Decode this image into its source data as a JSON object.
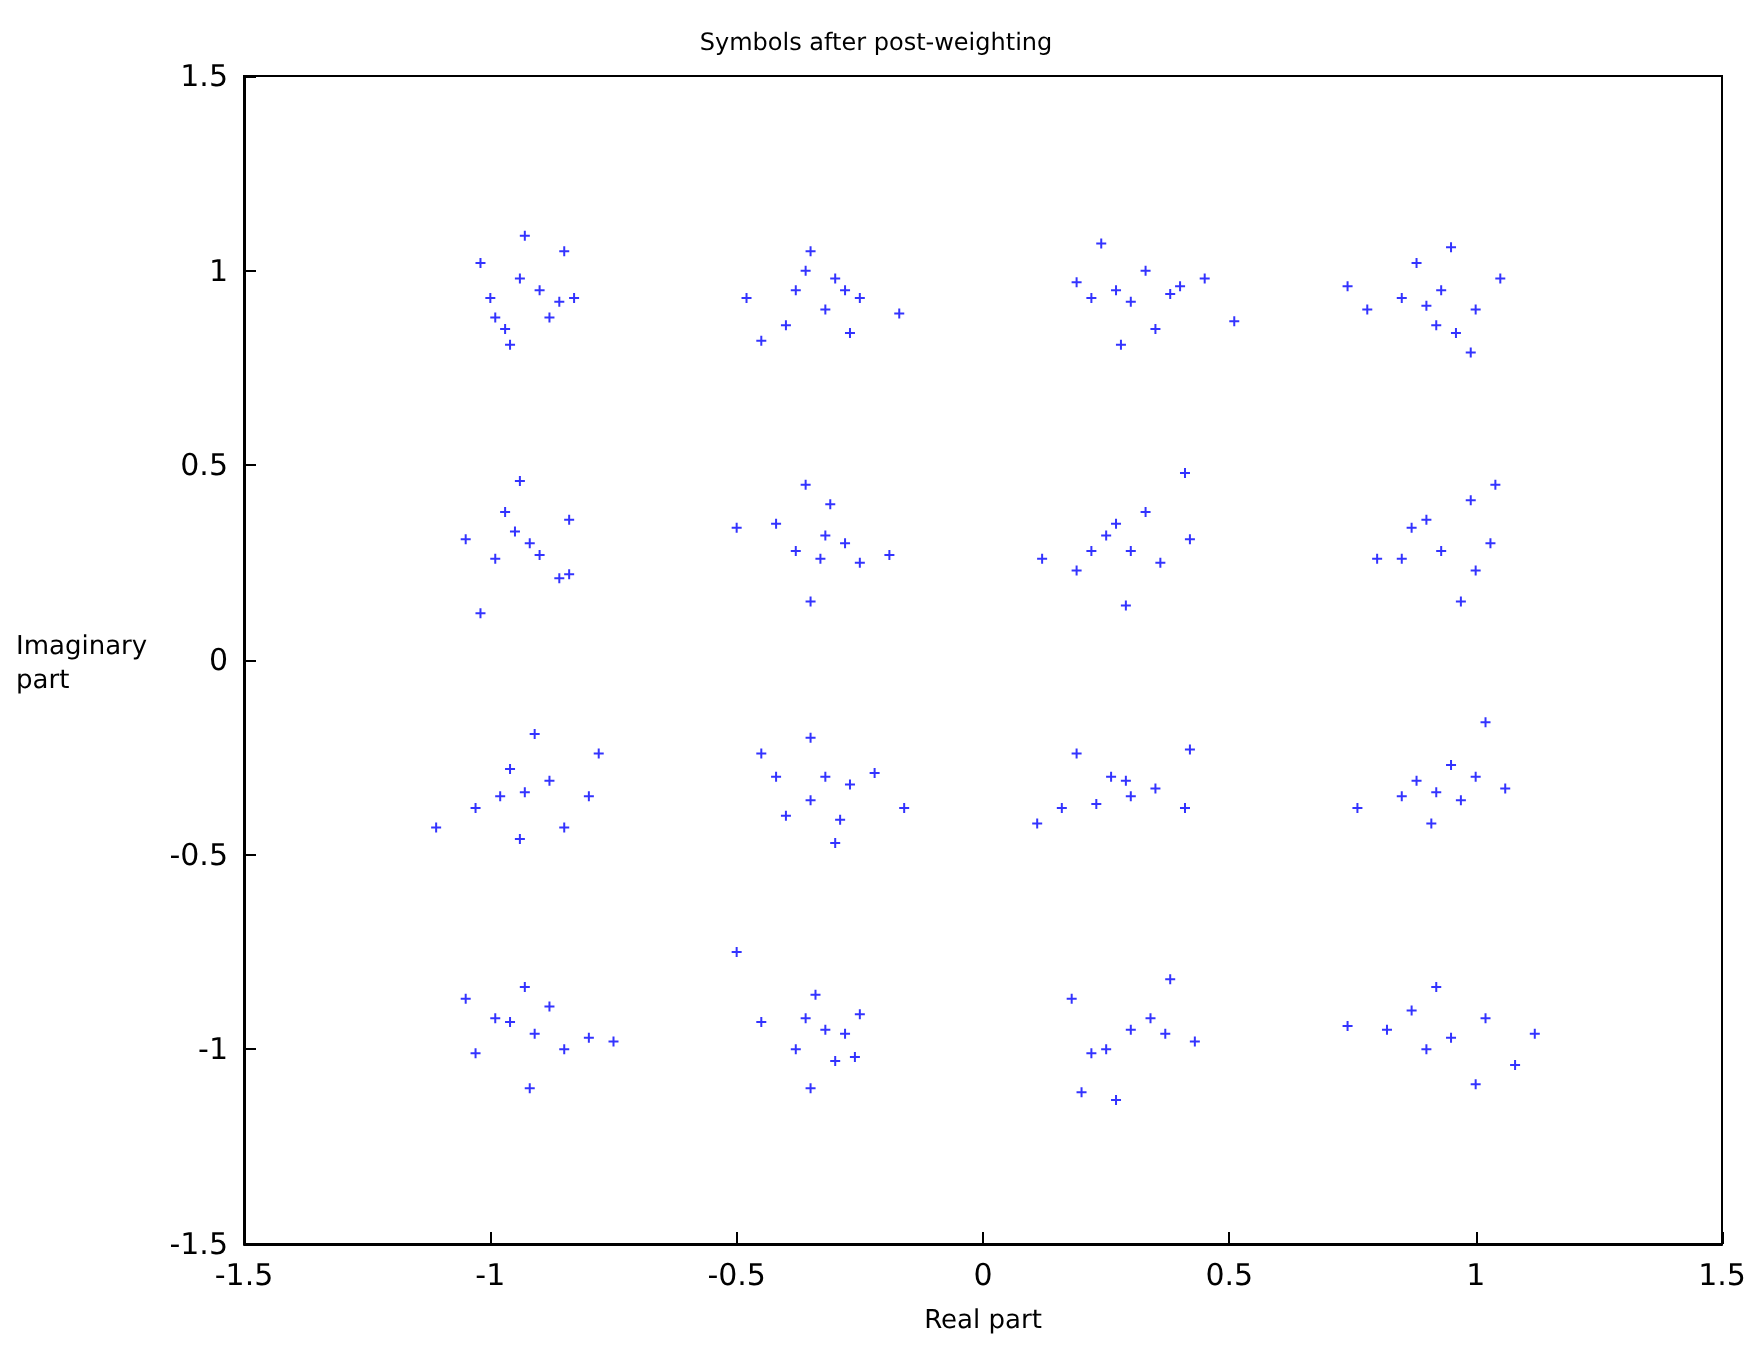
{
  "chart_data": {
    "type": "scatter",
    "title": "Symbols after post-weighting",
    "xlabel": "Real part",
    "ylabel": "Imaginary part",
    "marker": "cross",
    "grid": false,
    "xlim": [
      -1.5,
      1.5
    ],
    "xticks": [
      -1.5,
      -1,
      -0.5,
      0,
      0.5,
      1,
      1.5
    ],
    "ylim": [
      -1.5,
      1.5
    ],
    "yticks": [
      -1.5,
      -1,
      -0.5,
      0,
      0.5,
      1,
      1.5
    ],
    "series": [
      {
        "color": "#0000ff",
        "x": [
          -0.93,
          -1.02,
          -0.85,
          -0.83,
          -0.96,
          -0.99,
          -0.9,
          -0.94,
          -0.88,
          -1.0,
          -0.86,
          -0.97,
          -0.35,
          -0.48,
          -0.45,
          -0.17,
          -0.27,
          -0.3,
          -0.38,
          -0.32,
          -0.4,
          -0.25,
          -0.36,
          -0.28,
          0.24,
          0.19,
          0.51,
          0.45,
          0.28,
          0.35,
          0.3,
          0.27,
          0.38,
          0.33,
          0.22,
          0.4,
          0.95,
          0.74,
          0.88,
          1.05,
          0.99,
          0.96,
          0.9,
          0.85,
          0.93,
          1.0,
          0.78,
          0.92,
          -0.94,
          -1.02,
          -1.05,
          -0.84,
          -0.84,
          -0.97,
          -0.92,
          -0.99,
          -0.9,
          -0.95,
          -0.86,
          -0.36,
          -0.5,
          -0.35,
          -0.19,
          -0.31,
          -0.42,
          -0.28,
          -0.33,
          -0.38,
          -0.25,
          -0.32,
          0.41,
          0.12,
          0.19,
          0.42,
          0.29,
          0.33,
          0.25,
          0.3,
          0.36,
          0.22,
          0.27,
          1.04,
          0.8,
          0.99,
          0.97,
          0.87,
          0.93,
          1.0,
          0.85,
          1.03,
          0.9,
          -1.11,
          -0.91,
          -0.78,
          -0.94,
          -0.85,
          -0.96,
          -1.03,
          -0.88,
          -0.93,
          -0.8,
          -0.98,
          -0.35,
          -0.45,
          -0.16,
          -0.3,
          -0.4,
          -0.32,
          -0.27,
          -0.35,
          -0.22,
          -0.42,
          -0.29,
          0.11,
          0.19,
          0.42,
          0.29,
          0.23,
          0.35,
          0.41,
          0.3,
          0.16,
          0.26,
          1.02,
          0.76,
          1.06,
          0.91,
          0.88,
          0.95,
          0.97,
          0.85,
          0.92,
          1.0,
          -0.92,
          -1.05,
          -0.75,
          -0.93,
          -0.8,
          -1.03,
          -0.96,
          -0.88,
          -0.91,
          -0.85,
          -0.99,
          -0.5,
          -0.35,
          -0.45,
          -0.34,
          -0.25,
          -0.3,
          -0.38,
          -0.32,
          -0.28,
          -0.36,
          -0.26,
          0.18,
          0.38,
          0.2,
          0.27,
          0.43,
          0.3,
          0.25,
          0.34,
          0.22,
          0.37,
          0.74,
          1.12,
          0.92,
          1.0,
          1.08,
          0.87,
          0.95,
          0.82,
          1.02,
          0.9
        ],
        "values": [
          1.09,
          1.02,
          1.05,
          0.93,
          0.81,
          0.88,
          0.95,
          0.98,
          0.88,
          0.93,
          0.92,
          0.85,
          1.05,
          0.93,
          0.82,
          0.89,
          0.84,
          0.98,
          0.95,
          0.9,
          0.86,
          0.93,
          1.0,
          0.95,
          1.07,
          0.97,
          0.87,
          0.98,
          0.81,
          0.85,
          0.92,
          0.95,
          0.94,
          1.0,
          0.93,
          0.96,
          1.06,
          0.96,
          1.02,
          0.98,
          0.79,
          0.84,
          0.91,
          0.93,
          0.95,
          0.9,
          0.9,
          0.86,
          0.46,
          0.12,
          0.31,
          0.36,
          0.22,
          0.38,
          0.3,
          0.26,
          0.27,
          0.33,
          0.21,
          0.45,
          0.34,
          0.15,
          0.27,
          0.4,
          0.35,
          0.3,
          0.26,
          0.28,
          0.25,
          0.32,
          0.48,
          0.26,
          0.23,
          0.31,
          0.14,
          0.38,
          0.32,
          0.28,
          0.25,
          0.28,
          0.35,
          0.45,
          0.26,
          0.41,
          0.15,
          0.34,
          0.28,
          0.23,
          0.26,
          0.3,
          0.36,
          -0.43,
          -0.19,
          -0.24,
          -0.46,
          -0.43,
          -0.28,
          -0.38,
          -0.31,
          -0.34,
          -0.35,
          -0.35,
          -0.2,
          -0.24,
          -0.38,
          -0.47,
          -0.4,
          -0.3,
          -0.32,
          -0.36,
          -0.29,
          -0.3,
          -0.41,
          -0.42,
          -0.24,
          -0.23,
          -0.31,
          -0.37,
          -0.33,
          -0.38,
          -0.35,
          -0.38,
          -0.3,
          -0.16,
          -0.38,
          -0.33,
          -0.42,
          -0.31,
          -0.27,
          -0.36,
          -0.35,
          -0.34,
          -0.3,
          -1.1,
          -0.87,
          -0.98,
          -0.84,
          -0.97,
          -1.01,
          -0.93,
          -0.89,
          -0.96,
          -1.0,
          -0.92,
          -0.75,
          -1.1,
          -0.93,
          -0.86,
          -0.91,
          -1.03,
          -1.0,
          -0.95,
          -0.96,
          -0.92,
          -1.02,
          -0.87,
          -0.82,
          -1.11,
          -1.13,
          -0.98,
          -0.95,
          -1.0,
          -0.92,
          -1.01,
          -0.96,
          -0.94,
          -0.96,
          -0.84,
          -1.09,
          -1.04,
          -0.9,
          -0.97,
          -0.95,
          -0.92,
          -1.0
        ]
      }
    ]
  }
}
